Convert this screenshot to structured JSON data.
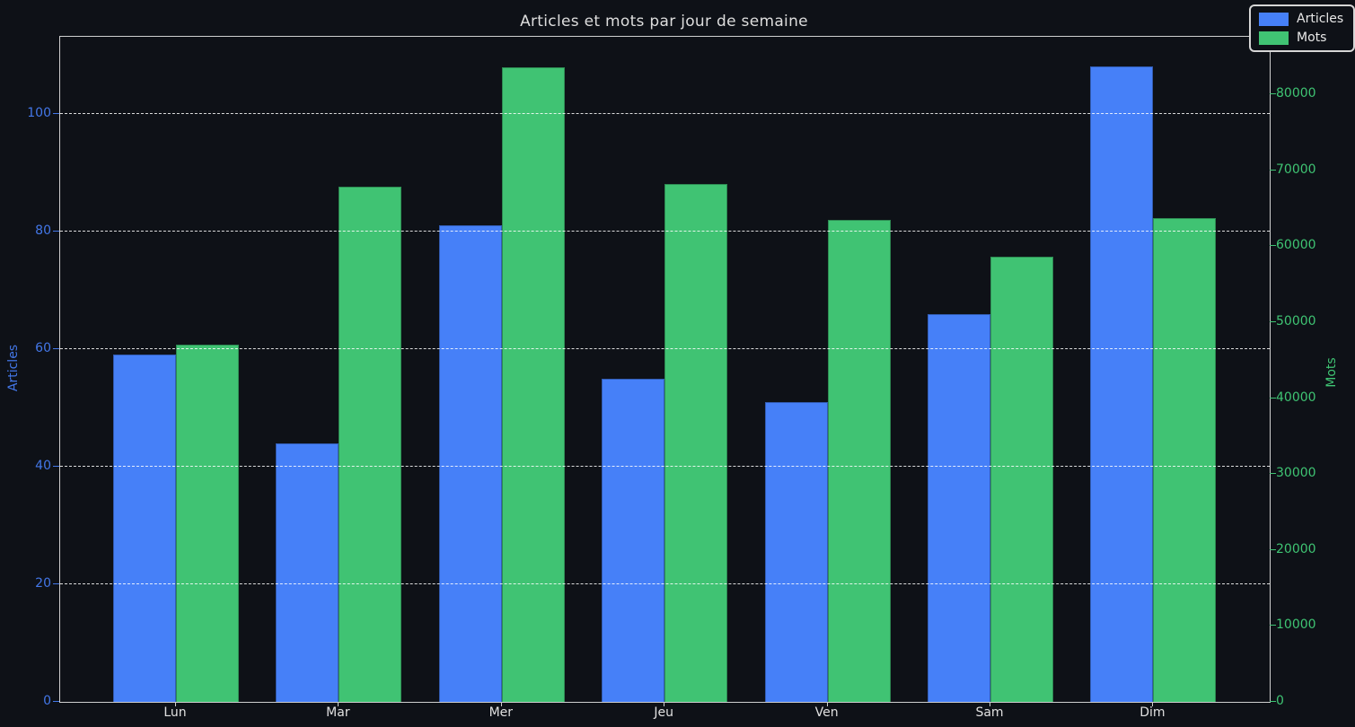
{
  "chart_data": {
    "type": "bar",
    "title": "Articles et mots par jour de semaine",
    "categories": [
      "Lun",
      "Mar",
      "Mer",
      "Jeu",
      "Ven",
      "Sam",
      "Dim"
    ],
    "series": [
      {
        "name": "Articles",
        "axis": "left",
        "color": "#4680f8",
        "values": [
          59,
          44,
          81,
          55,
          51,
          66,
          108
        ]
      },
      {
        "name": "Mots",
        "axis": "right",
        "color": "#40c373",
        "values": [
          47000,
          67800,
          83500,
          68200,
          63500,
          58600,
          63700
        ]
      }
    ],
    "left_axis": {
      "label": "Articles",
      "color": "#4377e8",
      "ticks": [
        0,
        20,
        40,
        60,
        80,
        100
      ],
      "ylim": [
        0,
        113.1
      ]
    },
    "right_axis": {
      "label": "Mots",
      "color": "#3fc473",
      "ticks": [
        0,
        10000,
        20000,
        30000,
        40000,
        50000,
        60000,
        70000,
        80000
      ],
      "ylim": [
        0,
        87550
      ]
    },
    "grid": {
      "on": true,
      "axis": "y",
      "style": "dashed",
      "color": "rgba(255,255,255,0.85)"
    },
    "legend": {
      "position": "top-right",
      "entries": [
        "Articles",
        "Mots"
      ]
    }
  },
  "style_colors": {
    "background": "#0e1117",
    "spine": "#cfcfcf",
    "title_text": "#dddddd",
    "x_tick_text": "#e0e0e0"
  }
}
